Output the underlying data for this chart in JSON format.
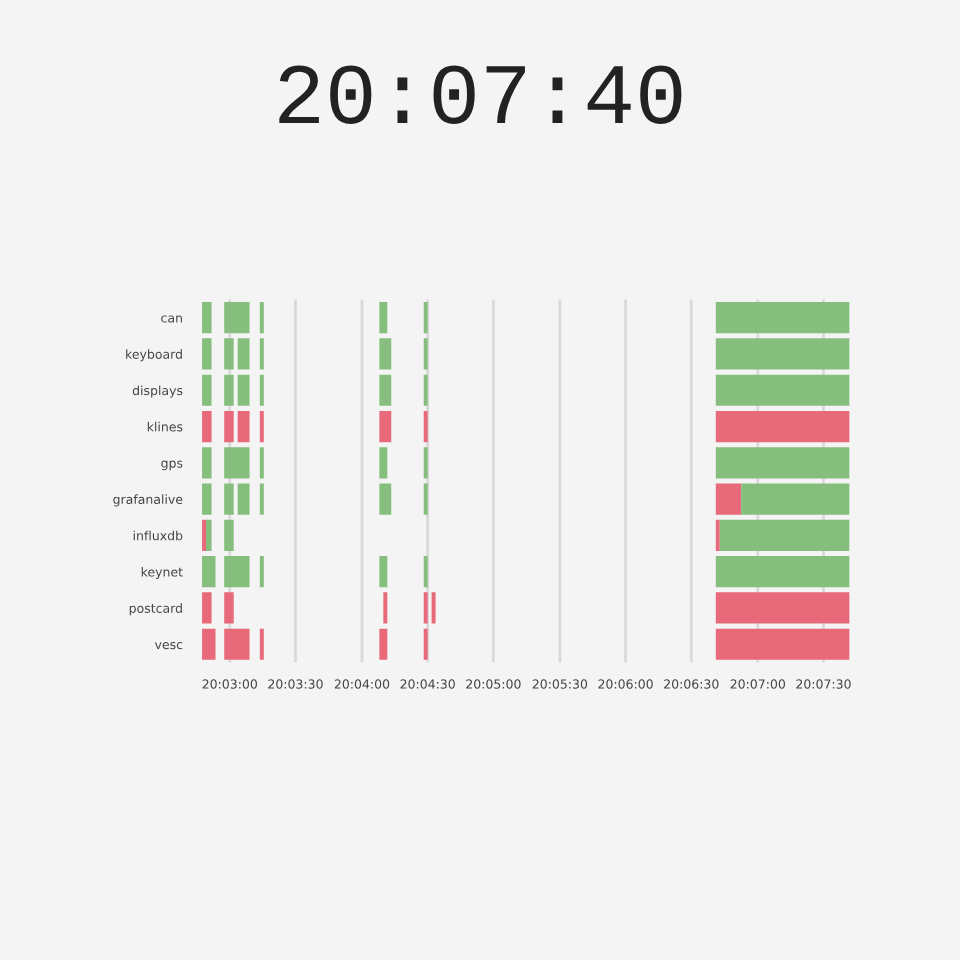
{
  "chart_data": {
    "type": "bar",
    "orientation": "horizontal",
    "title": "20:07:40",
    "categories": [
      "can",
      "keyboard",
      "displays",
      "klines",
      "gps",
      "grafanalive",
      "influxdb",
      "keynet",
      "postcard",
      "vesc"
    ],
    "series": [
      {
        "base": [
          20.0465,
          20.0465,
          20.0465,
          20.0465,
          20.0465,
          20.0465,
          20.0465,
          20.0465,
          20.0465,
          20.0465
        ],
        "values": [
          0.0012,
          0.0012,
          0.0012,
          0.0012,
          0.0012,
          0.0012,
          0.0005,
          0.0017,
          0.0012,
          0.0017
        ],
        "colors": [
          "#86be7e",
          "#86be7e",
          "#86be7e",
          "#e8697a",
          "#86be7e",
          "#86be7e",
          "#e8697a",
          "#86be7e",
          "#e8697a",
          "#e8697a"
        ]
      },
      {
        "base": [
          20.0493,
          20.0493,
          20.0493,
          20.0493,
          20.0493,
          20.0493,
          20.047,
          20.0493,
          20.0493,
          20.0493
        ],
        "values": [
          0.0032,
          0.0012,
          0.0012,
          0.0012,
          0.0032,
          0.0012,
          0.0007,
          0.0032,
          0.0012,
          0.0032
        ],
        "colors": [
          "#86be7e",
          "#86be7e",
          "#86be7e",
          "#e8697a",
          "#86be7e",
          "#86be7e",
          "#86be7e",
          "#86be7e",
          "#e8697a",
          "#e8697a"
        ]
      },
      {
        "base": [
          20.0538,
          20.051,
          20.051,
          20.051,
          20.0538,
          20.051,
          20.0493,
          20.0538,
          20.0694,
          20.0538
        ],
        "values": [
          0.0005,
          0.0015,
          0.0015,
          0.0015,
          0.0005,
          0.0015,
          0.0012,
          0.0005,
          0.0005,
          0.0005
        ],
        "colors": [
          "#86be7e",
          "#86be7e",
          "#86be7e",
          "#e8697a",
          "#86be7e",
          "#86be7e",
          "#86be7e",
          "#86be7e",
          "#e8697a",
          "#e8697a"
        ]
      },
      {
        "base": [
          20.0689,
          20.0538,
          20.0538,
          20.0538,
          20.0689,
          20.0538,
          20.1114,
          20.0689,
          20.0745,
          20.0689
        ],
        "values": [
          0.001,
          0.0005,
          0.0005,
          0.0005,
          0.001,
          0.0005,
          0.0005,
          0.001,
          0.0005,
          0.001
        ],
        "colors": [
          "#86be7e",
          "#86be7e",
          "#86be7e",
          "#e8697a",
          "#86be7e",
          "#86be7e",
          "#e8697a",
          "#86be7e",
          "#e8697a",
          "#e8697a"
        ]
      },
      {
        "base": [
          20.0745,
          20.0689,
          20.0689,
          20.0689,
          20.0745,
          20.0689,
          20.1119,
          20.0745,
          20.0755,
          20.0745
        ],
        "values": [
          0.0005,
          0.0015,
          0.0015,
          0.0015,
          0.0005,
          0.0015,
          0.0164,
          0.0005,
          0.0005,
          0.0005
        ],
        "colors": [
          "#86be7e",
          "#86be7e",
          "#86be7e",
          "#e8697a",
          "#86be7e",
          "#86be7e",
          "#86be7e",
          "#86be7e",
          "#e8697a",
          "#e8697a"
        ]
      },
      {
        "base": [
          20.1114,
          20.0745,
          20.0745,
          20.0745,
          20.1114,
          20.0745,
          null,
          20.1114,
          20.1114,
          20.1114
        ],
        "values": [
          0.0169,
          0.0005,
          0.0005,
          0.0005,
          0.0169,
          0.0005,
          null,
          0.0169,
          0.0169,
          0.0169
        ],
        "colors": [
          "#86be7e",
          "#86be7e",
          "#86be7e",
          "#e8697a",
          "#86be7e",
          "#86be7e",
          null,
          "#86be7e",
          "#e8697a",
          "#e8697a"
        ]
      },
      {
        "base": [
          null,
          20.1114,
          20.1114,
          20.1114,
          null,
          20.1114,
          null,
          null,
          null,
          null
        ],
        "values": [
          null,
          0.0169,
          0.0169,
          0.0169,
          null,
          0.0032,
          null,
          null,
          null,
          null
        ],
        "colors": [
          null,
          "#86be7e",
          "#86be7e",
          "#e8697a",
          null,
          "#e8697a",
          null,
          null,
          null,
          null
        ]
      },
      {
        "base": [
          null,
          null,
          null,
          null,
          null,
          20.1146,
          null,
          null,
          null,
          null
        ],
        "values": [
          null,
          null,
          null,
          null,
          null,
          0.0137,
          null,
          null,
          null,
          null
        ],
        "colors": [
          null,
          null,
          null,
          null,
          null,
          "#86be7e",
          null,
          null,
          null,
          null
        ]
      }
    ],
    "xlim": [
      20.0462,
      20.1283
    ],
    "xticks": [
      {
        "value": 20.05,
        "label": "20:03:00"
      },
      {
        "value": 20.0583,
        "label": "20:03:30"
      },
      {
        "value": 20.0667,
        "label": "20:04:00"
      },
      {
        "value": 20.075,
        "label": "20:04:30"
      },
      {
        "value": 20.0833,
        "label": "20:05:00"
      },
      {
        "value": 20.0917,
        "label": "20:05:30"
      },
      {
        "value": 20.1,
        "label": "20:06:00"
      },
      {
        "value": 20.1083,
        "label": "20:06:30"
      },
      {
        "value": 20.1167,
        "label": "20:07:00"
      },
      {
        "value": 20.125,
        "label": "20:07:30"
      }
    ],
    "grid": "x"
  }
}
